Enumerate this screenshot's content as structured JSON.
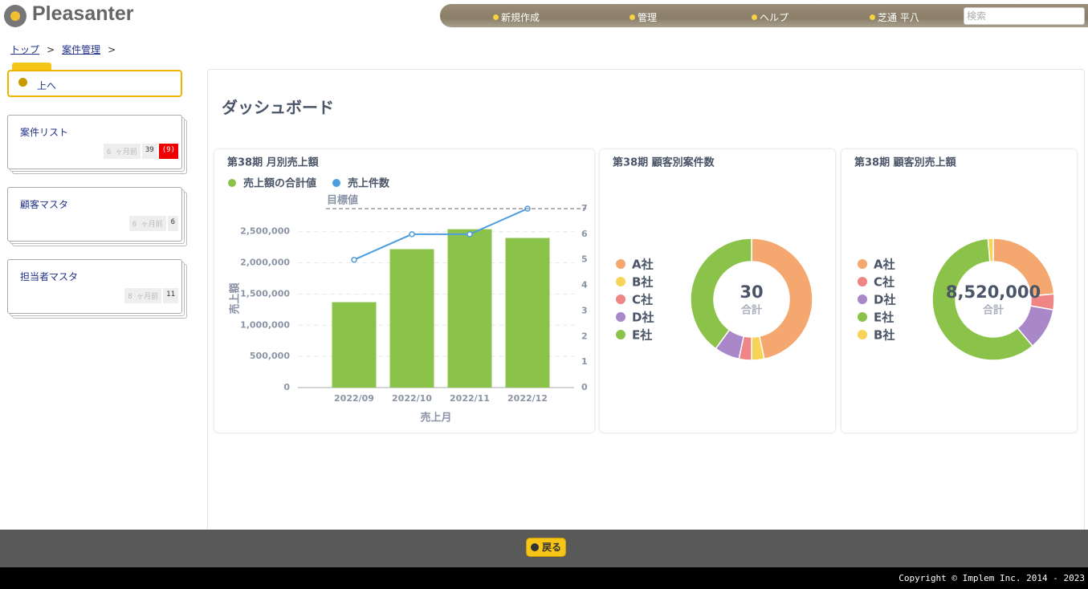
{
  "header": {
    "logo": "Pleasanter",
    "nav": [
      "新規作成",
      "管理",
      "ヘルプ",
      "芝通 平八"
    ],
    "search_placeholder": "検索"
  },
  "breadcrumb": {
    "items": [
      "トップ",
      "案件管理"
    ],
    "separator": ">"
  },
  "sidebar": {
    "up": "上へ",
    "sites": [
      {
        "title": "案件リスト",
        "updated": "6 ヶ月前",
        "count": 39,
        "badge": "(9)"
      },
      {
        "title": "顧客マスタ",
        "updated": "6 ヶ月前",
        "count": 6
      },
      {
        "title": "担当者マスタ",
        "updated": "8 ヶ月前",
        "count": 11
      }
    ]
  },
  "main": {
    "title": "ダッシュボード"
  },
  "chart_data": [
    {
      "type": "bar",
      "title": "第38期 月別売上額",
      "categories": [
        "2022/09",
        "2022/10",
        "2022/11",
        "2022/12"
      ],
      "series": [
        {
          "name": "売上額の合計値",
          "color": "#8bc34a",
          "values": [
            1370000,
            2220000,
            2540000,
            2400000
          ]
        },
        {
          "name": "売上件数",
          "color": "#4e9de0",
          "type": "line",
          "axis": "y2",
          "values": [
            5,
            6,
            6,
            7
          ]
        }
      ],
      "ylim": [
        0,
        2870000
      ],
      "yticks": [
        0,
        {
          "value": 500000,
          "label": "500,000"
        },
        {
          "value": 1000000,
          "label": "1,000,000"
        },
        {
          "value": 1500000,
          "label": "1,500,000"
        },
        {
          "value": 2000000,
          "label": "2,000,000"
        },
        {
          "value": 2500000,
          "label": "2,500,000"
        }
      ],
      "y2lim": [
        0,
        7
      ],
      "y2ticks": [
        0,
        1,
        2,
        3,
        4,
        5,
        6,
        7
      ],
      "target": {
        "label": "目標値",
        "value": 7
      },
      "x_label": "売上月",
      "y_label": "売上額",
      "grid": true
    },
    {
      "type": "pie",
      "title": "第38期 顧客別案件数",
      "categories": [
        "A社",
        "B社",
        "C社",
        "D社",
        "E社"
      ],
      "values": [
        14,
        1,
        1,
        2,
        12
      ],
      "colors": [
        "#f4a76e",
        "#f7d358",
        "#f08585",
        "#a987c9",
        "#8bc34a"
      ],
      "total": 30,
      "total_label": "合計"
    },
    {
      "type": "pie",
      "title": "第38期 顧客別売上額",
      "categories": [
        "A社",
        "C社",
        "D社",
        "E社",
        "B社"
      ],
      "values": [
        2010000,
        355000,
        947000,
        5090000,
        118000
      ],
      "colors": [
        "#f4a76e",
        "#f08585",
        "#a987c9",
        "#8bc34a",
        "#f7d358"
      ],
      "total": {
        "value": 8520000,
        "label": "8,520,000"
      },
      "total_label": "合計"
    }
  ],
  "footer": {
    "back": "戻る",
    "copyright": "Copyright © Implem Inc. 2014 - 2023"
  }
}
